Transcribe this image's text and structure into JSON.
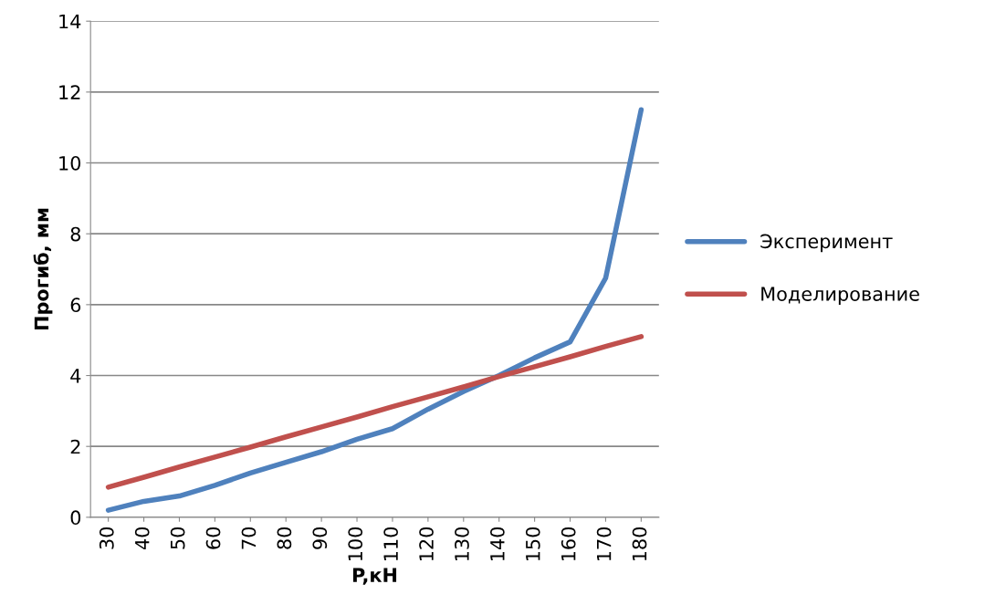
{
  "chart_data": {
    "type": "line",
    "xlabel": "P,кН",
    "ylabel": "Прогиб, мм",
    "categories": [
      "30",
      "40",
      "50",
      "60",
      "70",
      "80",
      "90",
      "100",
      "110",
      "120",
      "130",
      "140",
      "150",
      "160",
      "170",
      "180"
    ],
    "series": [
      {
        "name": "Эксперимент",
        "color": "#4f81bd",
        "values": [
          0.2,
          0.45,
          0.6,
          0.9,
          1.25,
          1.55,
          1.85,
          2.2,
          2.5,
          3.05,
          3.55,
          4.0,
          4.5,
          4.95,
          6.75,
          11.5
        ]
      },
      {
        "name": "Моделирование",
        "color": "#c0504d",
        "values": [
          0.85,
          1.13,
          1.42,
          1.7,
          1.98,
          2.27,
          2.55,
          2.83,
          3.12,
          3.4,
          3.68,
          3.97,
          4.25,
          4.53,
          4.82,
          5.1
        ]
      }
    ],
    "ylim": [
      0,
      14
    ],
    "yticks": [
      0,
      2,
      4,
      6,
      8,
      10,
      12,
      14
    ],
    "grid": "y",
    "legend": "right",
    "marker": "none",
    "line_style": "solid"
  }
}
